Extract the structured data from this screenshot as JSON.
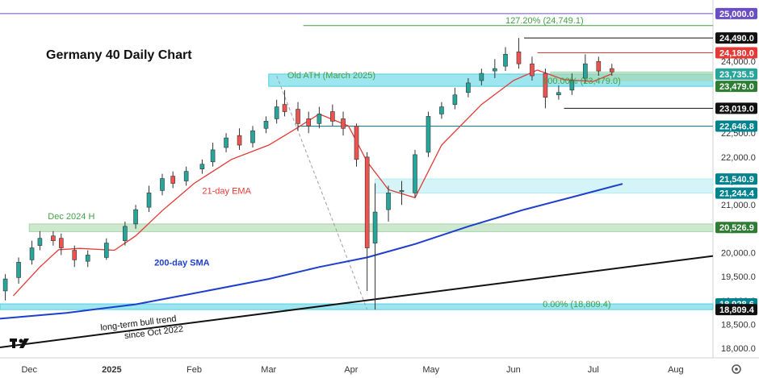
{
  "chart_data": {
    "type": "candlestick",
    "title": "Germany 40 Daily Chart",
    "ylim": [
      17800,
      25150
    ],
    "y_ticks": [
      "25,000.0",
      "24,490.0",
      "24,000.0",
      "23,500.0",
      "23,000.0",
      "22,500.0",
      "22,000.0",
      "21,500.0",
      "21,000.0",
      "20,500.0",
      "20,000.0",
      "19,500.0",
      "19,000.0",
      "18,500.0",
      "18,000.0"
    ],
    "y_tick_values": [
      25000,
      24490,
      24000,
      23500,
      23000,
      22500,
      22000,
      21500,
      21000,
      20500,
      20000,
      19500,
      19000,
      18500,
      18000
    ],
    "x_ticks": [
      {
        "label": "Dec",
        "x": "2024-12-01"
      },
      {
        "label": "2025",
        "x": "2025-01-01"
      },
      {
        "label": "Feb",
        "x": "2025-02-01"
      },
      {
        "label": "Mar",
        "x": "2025-03-01"
      },
      {
        "label": "Apr",
        "x": "2025-04-01"
      },
      {
        "label": "May",
        "x": "2025-05-01"
      },
      {
        "label": "Jun",
        "x": "2025-06-01"
      },
      {
        "label": "Jul",
        "x": "2025-07-01"
      },
      {
        "label": "Aug",
        "x": "2025-08-01"
      }
    ],
    "x_range": [
      "2024-11-20",
      "2025-08-15"
    ],
    "price_badges": [
      {
        "label": "25,000.0",
        "value": 25000,
        "bg": "#6a4fc1"
      },
      {
        "label": "24,490.0",
        "value": 24490,
        "bg": "#111111"
      },
      {
        "label": "24,180.0",
        "value": 24180,
        "bg": "#e53935"
      },
      {
        "label": "23,735.5",
        "value": 23735.5,
        "bg": "#26a69a"
      },
      {
        "label": "23,479.0",
        "value": 23479,
        "bg": "#2e7d32"
      },
      {
        "label": "23,019.0",
        "value": 23019,
        "bg": "#111111"
      },
      {
        "label": "22,646.8",
        "value": 22646.8,
        "bg": "#00838f"
      },
      {
        "label": "21,540.9",
        "value": 21540.9,
        "bg": "#00838f"
      },
      {
        "label": "21,244.4",
        "value": 21244.4,
        "bg": "#00838f"
      },
      {
        "label": "20,526.9",
        "value": 20526.9,
        "bg": "#2e7d32"
      },
      {
        "label": "18,928.6",
        "value": 18928.6,
        "bg": "#00838f"
      },
      {
        "label": "18,809.4",
        "value": 18809.4,
        "bg": "#111111"
      }
    ],
    "annotations": [
      {
        "text": "127.20% (24,749.1)",
        "x": "2025-05-29",
        "value": 24749.1,
        "color": "#43a047"
      },
      {
        "text": "Old ATH (March 2025)",
        "x": "2025-03-08",
        "value": 23600,
        "color": "#43a047"
      },
      {
        "text": "100.00% (23,479.0)",
        "x": "2025-06-12",
        "value": 23479,
        "color": "#43a047"
      },
      {
        "text": "21-day EMA",
        "x": "2025-02-04",
        "value": 21180,
        "color": "#e53935"
      },
      {
        "text": "Dec 2024 H",
        "x": "2024-12-08",
        "value": 20650,
        "color": "#43a047"
      },
      {
        "text": "200-day SMA",
        "x": "2025-01-17",
        "value": 19680,
        "color": "#1e3fcc"
      },
      {
        "text": "0.00% (18,809.4)",
        "x": "2025-06-12",
        "value": 18809.4,
        "color": "#43a047"
      },
      {
        "text": "long-term bull trend",
        "x": "2024-12-28",
        "value": 18320,
        "color": "#111111"
      },
      {
        "text": "since Oct 2022",
        "x": "2025-01-06",
        "value": 18150,
        "color": "#111111"
      }
    ],
    "zones": [
      {
        "from": 23479,
        "to": 23735.5,
        "x_start": "2025-03-01",
        "color": "#4dd0e1"
      },
      {
        "from": 21244.4,
        "to": 21540.9,
        "x_start": "2025-04-10",
        "color": "#b2ebf2"
      },
      {
        "from": 20440,
        "to": 20600,
        "x_start": "2024-12-01",
        "color": "#a5d6a7"
      },
      {
        "from": 18809.4,
        "to": 18928.6,
        "x_start": "2024-11-20",
        "color": "#4dd0e1"
      },
      {
        "from": 23600,
        "to": 23780,
        "x_start": "2025-06-15",
        "color": "#a5d6a7"
      }
    ],
    "levels": [
      {
        "value": 25000,
        "x_start": "2024-11-20",
        "color": "#6a4fc1"
      },
      {
        "value": 24749.1,
        "x_start": "2025-03-14",
        "color": "#43a047"
      },
      {
        "value": 24490,
        "x_start": "2025-06-05",
        "color": "#111111"
      },
      {
        "value": 24180,
        "x_start": "2025-06-10",
        "color": "#e53935"
      },
      {
        "value": 23019,
        "x_start": "2025-06-20",
        "color": "#111111"
      },
      {
        "value": 22646.8,
        "x_start": "2025-03-12",
        "color": "#00838f"
      }
    ],
    "trendline": {
      "from": [
        "2024-11-20",
        18020
      ],
      "to": [
        "2025-08-15",
        19930
      ],
      "color": "#111111"
    },
    "fib_dash": {
      "from": [
        "2025-03-04",
        23700
      ],
      "to": [
        "2025-04-07",
        18809.4
      ],
      "color": "#9e9e9e"
    },
    "sma200": {
      "color": "#1e3fcc",
      "x": [
        "2024-11-20",
        "2024-12-15",
        "2025-01-10",
        "2025-02-01",
        "2025-03-01",
        "2025-03-20",
        "2025-04-07",
        "2025-04-25",
        "2025-05-15",
        "2025-06-05",
        "2025-06-25",
        "2025-07-12"
      ],
      "y": [
        18620,
        18740,
        18920,
        19150,
        19450,
        19700,
        19900,
        20180,
        20550,
        20900,
        21190,
        21440
      ]
    },
    "ema21": {
      "color": "#e53935",
      "x": [
        "2024-11-25",
        "2024-12-05",
        "2024-12-12",
        "2024-12-20",
        "2025-01-02",
        "2025-01-10",
        "2025-01-20",
        "2025-02-01",
        "2025-02-15",
        "2025-03-01",
        "2025-03-10",
        "2025-03-20",
        "2025-03-31",
        "2025-04-07",
        "2025-04-15",
        "2025-04-25",
        "2025-05-05",
        "2025-05-20",
        "2025-06-01",
        "2025-06-10",
        "2025-06-20",
        "2025-07-01",
        "2025-07-08"
      ],
      "y": [
        19100,
        19700,
        20060,
        20090,
        20050,
        20350,
        20880,
        21450,
        21950,
        22250,
        22550,
        22900,
        22650,
        21900,
        21320,
        21150,
        22250,
        23100,
        23600,
        23820,
        23620,
        23580,
        23740
      ]
    },
    "candles": {
      "x": [
        "2024-11-22",
        "2024-11-27",
        "2024-12-02",
        "2024-12-05",
        "2024-12-10",
        "2024-12-13",
        "2024-12-18",
        "2024-12-23",
        "2024-12-30",
        "2025-01-06",
        "2025-01-10",
        "2025-01-15",
        "2025-01-20",
        "2025-01-24",
        "2025-01-29",
        "2025-02-04",
        "2025-02-08",
        "2025-02-13",
        "2025-02-18",
        "2025-02-23",
        "2025-02-28",
        "2025-03-04",
        "2025-03-07",
        "2025-03-12",
        "2025-03-16",
        "2025-03-20",
        "2025-03-25",
        "2025-03-29",
        "2025-04-03",
        "2025-04-07",
        "2025-04-10",
        "2025-04-15",
        "2025-04-20",
        "2025-04-25",
        "2025-04-30",
        "2025-05-05",
        "2025-05-10",
        "2025-05-15",
        "2025-05-20",
        "2025-05-25",
        "2025-05-29",
        "2025-06-03",
        "2025-06-08",
        "2025-06-13",
        "2025-06-18",
        "2025-06-23",
        "2025-06-28",
        "2025-07-03",
        "2025-07-08"
      ],
      "open": [
        19200,
        19480,
        19850,
        20150,
        20350,
        20300,
        20050,
        19820,
        19900,
        20250,
        20600,
        20950,
        21300,
        21600,
        21500,
        21750,
        21900,
        22200,
        22450,
        22300,
        22600,
        22800,
        23100,
        23000,
        22800,
        22700,
        22950,
        22800,
        22650,
        22000,
        20200,
        20900,
        21300,
        21250,
        22100,
        22900,
        23100,
        23350,
        23600,
        23800,
        23900,
        24200,
        23950,
        23750,
        23300,
        23400,
        23650,
        24000,
        23850
      ],
      "close": [
        19450,
        19800,
        20100,
        20300,
        20250,
        20100,
        19850,
        19950,
        20200,
        20550,
        20900,
        21250,
        21550,
        21450,
        21700,
        21850,
        22150,
        22400,
        22250,
        22550,
        22750,
        23050,
        22950,
        22700,
        22650,
        22900,
        22750,
        22600,
        21950,
        20100,
        20850,
        21250,
        21300,
        22050,
        22850,
        23050,
        23300,
        23550,
        23750,
        23850,
        24150,
        23950,
        23700,
        23250,
        23350,
        23600,
        23950,
        23800,
        23780
      ],
      "high": [
        19550,
        19900,
        20250,
        20450,
        20450,
        20400,
        20150,
        20050,
        20300,
        20650,
        21000,
        21400,
        21650,
        21700,
        21800,
        21950,
        22300,
        22500,
        22600,
        22650,
        22850,
        23200,
        23400,
        23150,
        22950,
        23050,
        23100,
        22950,
        22700,
        22100,
        21450,
        21400,
        21500,
        22150,
        22950,
        23150,
        23450,
        23650,
        23850,
        24050,
        24300,
        24490,
        24100,
        23850,
        23500,
        23750,
        24150,
        24100,
        23950
      ],
      "low": [
        19000,
        19350,
        19750,
        20050,
        20150,
        19950,
        19700,
        19700,
        19850,
        20150,
        20500,
        20850,
        21200,
        21350,
        21400,
        21650,
        21800,
        22100,
        22150,
        22200,
        22500,
        22700,
        22850,
        22550,
        22500,
        22600,
        22650,
        22450,
        21800,
        19200,
        18809.4,
        20650,
        21000,
        21150,
        22000,
        22800,
        23000,
        23250,
        23500,
        23650,
        23800,
        23850,
        23600,
        23019,
        23200,
        23300,
        23550,
        23700,
        23700
      ]
    },
    "bull_color": "#26a69a",
    "bear_color": "#ef5350"
  },
  "toolbar": {
    "logo_icon": "tradingview-logo-icon",
    "settings_icon": "gear-icon"
  }
}
